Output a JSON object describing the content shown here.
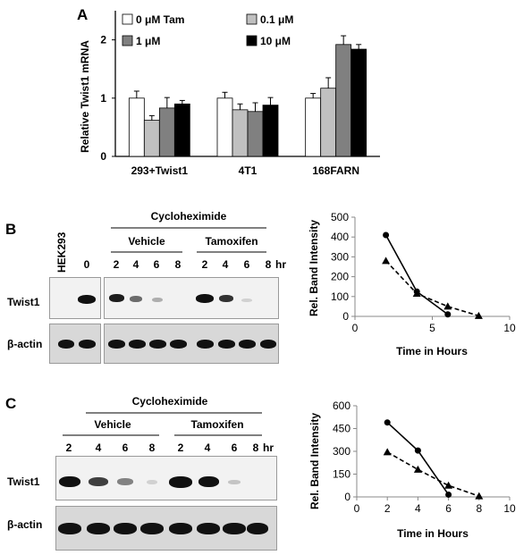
{
  "panel_labels": {
    "a": "A",
    "b": "B",
    "c": "C"
  },
  "panel_a": {
    "chart_data": {
      "type": "bar",
      "ylabel": "Relative Twist1 mRNA",
      "ylim": [
        0,
        2.5
      ],
      "yticks": [
        "0",
        "1",
        "2"
      ],
      "categories": [
        "293+Twist1",
        "4T1",
        "168FARN"
      ],
      "series": [
        {
          "name": "0 μM Tam",
          "color": "#ffffff",
          "values": [
            1.0,
            1.0,
            1.0
          ],
          "errors": [
            0.12,
            0.1,
            0.08
          ]
        },
        {
          "name": "0.1 μM",
          "color": "#c0c0c0",
          "values": [
            0.62,
            0.8,
            1.17
          ],
          "errors": [
            0.08,
            0.1,
            0.18
          ]
        },
        {
          "name": "1 μM",
          "color": "#808080",
          "values": [
            0.83,
            0.77,
            1.92
          ],
          "errors": [
            0.18,
            0.15,
            0.15
          ]
        },
        {
          "name": "10 μM",
          "color": "#000000",
          "values": [
            0.9,
            0.88,
            1.84
          ],
          "errors": [
            0.06,
            0.13,
            0.08
          ]
        }
      ]
    }
  },
  "panel_b": {
    "header": "Cycloheximide",
    "group_left": "Vehicle",
    "group_right": "Tamoxifen",
    "lane_label_rotated": "HEK293",
    "lane_zero": "0",
    "lanes_vehicle": [
      "2",
      "4",
      "6",
      "8"
    ],
    "lanes_tamoxifen": [
      "2",
      "4",
      "6",
      "8"
    ],
    "hr": "hr",
    "row1": "Twist1",
    "row2": "β-actin",
    "chart_data": {
      "type": "line",
      "xlabel": "Time in Hours",
      "ylabel": "Rel. Band Intensity",
      "xlim": [
        0,
        10
      ],
      "ylim": [
        0,
        500
      ],
      "xticks": [
        "0",
        "5",
        "10"
      ],
      "yticks": [
        "0",
        "100",
        "200",
        "300",
        "400",
        "500"
      ],
      "series": [
        {
          "style": "solid",
          "marker": "circle",
          "x": [
            2,
            4,
            6
          ],
          "y": [
            410,
            125,
            10
          ]
        },
        {
          "style": "dashed",
          "marker": "triangle",
          "x": [
            2,
            4,
            6,
            8
          ],
          "y": [
            280,
            115,
            50,
            3
          ]
        }
      ]
    }
  },
  "panel_c": {
    "header": "Cycloheximide",
    "group_left": "Vehicle",
    "group_right": "Tamoxifen",
    "lanes_vehicle": [
      "2",
      "4",
      "6",
      "8"
    ],
    "lanes_tamoxifen": [
      "2",
      "4",
      "6",
      "8"
    ],
    "hr": "hr",
    "row1": "Twist1",
    "row2": "β-actin",
    "chart_data": {
      "type": "line",
      "xlabel": "Time in Hours",
      "ylabel": "Rel. Band Intensity",
      "xlim": [
        0,
        10
      ],
      "ylim": [
        0,
        600
      ],
      "xticks": [
        "0",
        "2",
        "4",
        "6",
        "8",
        "10"
      ],
      "yticks": [
        "0",
        "150",
        "300",
        "450",
        "600"
      ],
      "series": [
        {
          "style": "solid",
          "marker": "circle",
          "x": [
            2,
            4,
            6
          ],
          "y": [
            490,
            305,
            15
          ]
        },
        {
          "style": "dashed",
          "marker": "triangle",
          "x": [
            2,
            4,
            6,
            8
          ],
          "y": [
            295,
            180,
            75,
            5
          ]
        }
      ]
    }
  }
}
